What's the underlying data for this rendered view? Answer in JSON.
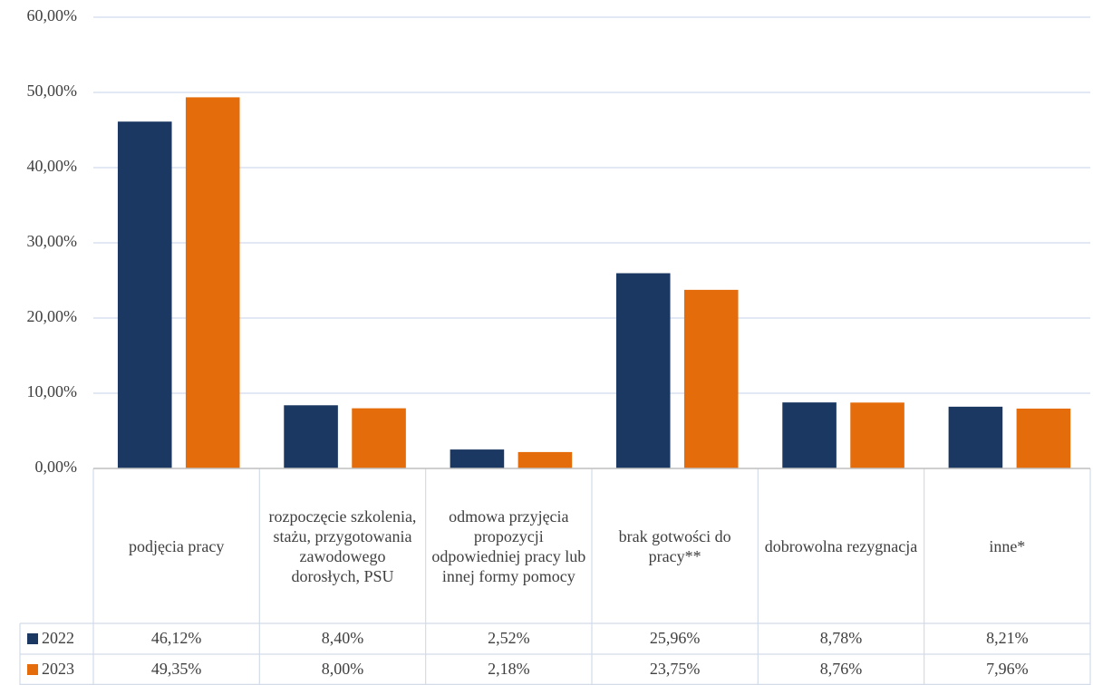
{
  "chart_data": {
    "type": "bar",
    "categories": [
      "podjęcia pracy",
      "rozpoczęcie szkolenia, stażu, przygotowania zawodowego dorosłych, PSU",
      "odmowa przyjęcia propozycji odpowiedniej pracy lub innej formy pomocy",
      "brak gotwości do pracy**",
      "dobrowolna rezygnacja",
      "inne*"
    ],
    "series": [
      {
        "name": "2022",
        "color": "#1b3862",
        "values": [
          46.12,
          8.4,
          2.52,
          25.96,
          8.78,
          8.21
        ],
        "value_labels": [
          "46,12%",
          "8,40%",
          "2,52%",
          "25,96%",
          "8,78%",
          "8,21%"
        ]
      },
      {
        "name": "2023",
        "color": "#e46c0a",
        "values": [
          49.35,
          8.0,
          2.18,
          23.75,
          8.76,
          7.96
        ],
        "value_labels": [
          "49,35%",
          "8,00%",
          "2,18%",
          "23,75%",
          "8,76%",
          "7,96%"
        ]
      }
    ],
    "ylim": [
      0,
      60
    ],
    "yticks": [
      {
        "value": 0,
        "label": "0,00%"
      },
      {
        "value": 10,
        "label": "10,00%"
      },
      {
        "value": 20,
        "label": "20,00%"
      },
      {
        "value": 30,
        "label": "30,00%"
      },
      {
        "value": 40,
        "label": "40,00%"
      },
      {
        "value": 50,
        "label": "50,00%"
      },
      {
        "value": 60,
        "label": "60,00%"
      }
    ],
    "grid": true
  }
}
